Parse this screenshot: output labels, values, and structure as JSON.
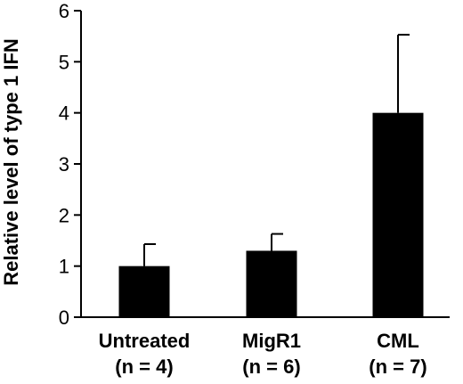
{
  "chart_data": {
    "type": "bar",
    "title": "",
    "xlabel": "",
    "ylabel": "Relative level of type 1 IFN",
    "ylim": [
      0,
      6
    ],
    "yticks": [
      "0",
      "1",
      "2",
      "3",
      "4",
      "5",
      "6"
    ],
    "categories": [
      "Untreated",
      "MigR1",
      "CML"
    ],
    "category_sublabels": [
      "(n = 4)",
      "(n = 6)",
      "(n = 7)"
    ],
    "values": [
      1.0,
      1.3,
      4.0
    ],
    "error_upper": [
      0.43,
      0.33,
      1.53
    ],
    "bar_color": "#000000",
    "grid": false,
    "legend": "none"
  }
}
